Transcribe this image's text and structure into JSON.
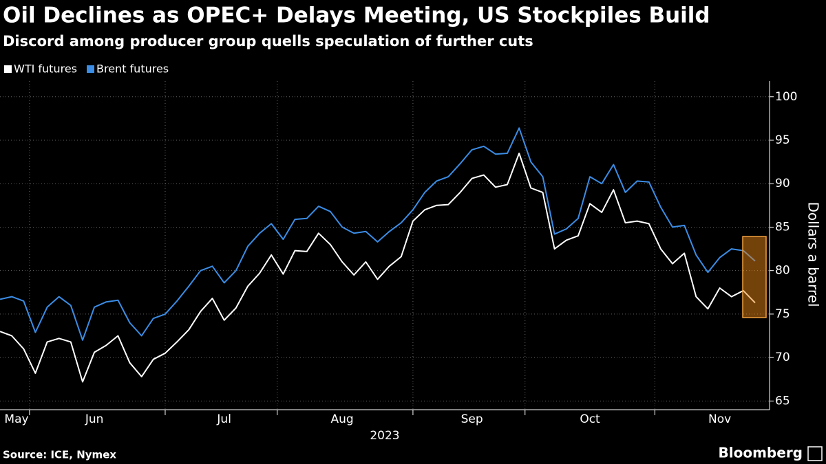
{
  "chart_data": {
    "type": "line",
    "title": "Oil Declines as OPEC+ Delays Meeting, US Stockpiles Build",
    "subtitle": "Discord among producer group quells speculation of further cuts",
    "ylabel": "Dollars a barrel",
    "xlabel": "2023",
    "source": "Source: ICE, Nymex",
    "logo": "Bloomberg",
    "categories": [
      null,
      "May",
      null,
      null,
      null,
      null,
      null,
      null,
      "Jun",
      null,
      null,
      null,
      null,
      null,
      null,
      null,
      null,
      null,
      null,
      "Jul",
      null,
      null,
      null,
      null,
      null,
      null,
      null,
      null,
      null,
      "Aug",
      null,
      null,
      null,
      null,
      null,
      null,
      null,
      null,
      null,
      null,
      "Sep",
      null,
      null,
      null,
      null,
      null,
      null,
      null,
      null,
      null,
      "Oct",
      null,
      null,
      null,
      null,
      null,
      null,
      null,
      null,
      null,
      null,
      "Nov",
      null,
      null,
      null
    ],
    "series": [
      {
        "name": "WTI futures",
        "color": "#ffffff",
        "values": [
          73.0,
          72.5,
          71.0,
          68.2,
          71.8,
          72.2,
          71.8,
          67.2,
          70.6,
          71.4,
          72.5,
          69.4,
          67.8,
          69.8,
          70.5,
          71.8,
          73.2,
          75.3,
          76.8,
          74.3,
          75.7,
          78.2,
          79.7,
          81.8,
          79.6,
          82.3,
          82.2,
          84.3,
          83.0,
          81.0,
          79.5,
          81.0,
          79.0,
          80.5,
          81.6,
          85.7,
          87.0,
          87.5,
          87.6,
          89.0,
          90.6,
          91.0,
          89.6,
          89.9,
          93.5,
          89.5,
          89.0,
          82.5,
          83.5,
          84.0,
          87.7,
          86.7,
          89.3,
          85.5,
          85.7,
          85.4,
          82.5,
          80.8,
          82.0,
          77.0,
          75.6,
          78.0,
          77.0,
          77.7,
          76.3
        ]
      },
      {
        "name": "Brent futures",
        "color": "#3b8de6",
        "values": [
          76.7,
          77.0,
          76.5,
          72.9,
          75.8,
          77.0,
          76.0,
          72.0,
          75.8,
          76.4,
          76.6,
          74.0,
          72.5,
          74.5,
          75.0,
          76.5,
          78.2,
          80.0,
          80.5,
          78.6,
          80.0,
          82.8,
          84.3,
          85.4,
          83.6,
          85.9,
          86.0,
          87.4,
          86.8,
          85.0,
          84.3,
          84.5,
          83.3,
          84.5,
          85.5,
          87.0,
          89.0,
          90.3,
          90.8,
          92.3,
          93.9,
          94.3,
          93.4,
          93.5,
          96.4,
          92.5,
          90.8,
          84.2,
          84.8,
          86.0,
          90.8,
          90.0,
          92.2,
          89.0,
          90.3,
          90.2,
          87.3,
          85.0,
          85.2,
          81.8,
          79.8,
          81.5,
          82.5,
          82.3,
          81.1
        ]
      }
    ],
    "ylim": [
      64,
      101.8
    ],
    "yticks": [
      65,
      70,
      75,
      80,
      85,
      90,
      95,
      100
    ],
    "grid": true
  }
}
